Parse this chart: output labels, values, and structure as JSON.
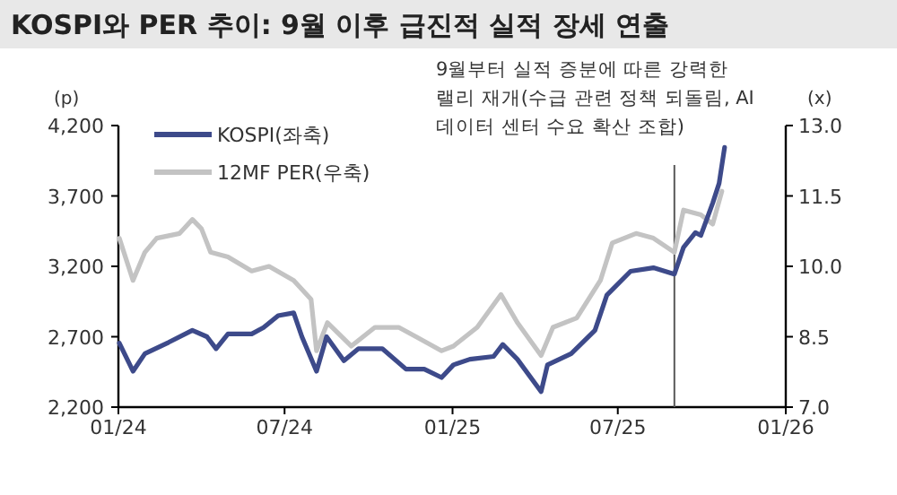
{
  "chart_data": {
    "type": "line",
    "title": "KOSPI와 PER 추이: 9월 이후 급진적 실적 장세 연출",
    "ylabel": "(p)",
    "y2label": "(x)",
    "annotations": [
      "9월부터 실적 증분에 따른 강력한\n랠리 재개(수급 관련 정책 되돌림, AI\n데이터 센터 수요 확산 조합)"
    ],
    "legend": "top left",
    "grid": false,
    "xlim": [
      "2024-01-01",
      "2026-01-01"
    ],
    "xticks": [
      {
        "value": "2024-01-01",
        "label": "01/24"
      },
      {
        "value": "2024-07-01",
        "label": "07/24"
      },
      {
        "value": "2025-01-01",
        "label": "01/25"
      },
      {
        "value": "2025-07-01",
        "label": "07/25"
      },
      {
        "value": "2026-01-01",
        "label": "01/26"
      }
    ],
    "ylim": [
      2200,
      4200
    ],
    "yticks": [
      {
        "value": 2200,
        "label": "2,200"
      },
      {
        "value": 2700,
        "label": "2,700"
      },
      {
        "value": 3200,
        "label": "3,200"
      },
      {
        "value": 3700,
        "label": "3,700"
      },
      {
        "value": 4200,
        "label": "4,200"
      }
    ],
    "y2lim": [
      7.0,
      13.0
    ],
    "y2ticks": [
      {
        "value": 7.0,
        "label": "7.0"
      },
      {
        "value": 8.5,
        "label": "8.5"
      },
      {
        "value": 10.0,
        "label": "10.0"
      },
      {
        "value": 11.5,
        "label": "11.5"
      },
      {
        "value": 13.0,
        "label": "13.0"
      }
    ],
    "ref_lines": [
      {
        "axis": "x",
        "value": "2025-09-01",
        "color": "#595959"
      }
    ],
    "series": [
      {
        "name": "KOSPI(좌축)",
        "color": "#3d4a8a",
        "x": [
          "2024-01-02",
          "2024-01-17",
          "2024-01-30",
          "2024-02-25",
          "2024-03-22",
          "2024-04-07",
          "2024-04-17",
          "2024-04-30",
          "2024-05-26",
          "2024-06-08",
          "2024-06-24",
          "2024-07-11",
          "2024-07-20",
          "2024-08-05",
          "2024-08-16",
          "2024-09-04",
          "2024-09-20",
          "2024-10-16",
          "2024-11-11",
          "2024-12-01",
          "2024-12-20",
          "2025-01-02",
          "2025-01-20",
          "2025-02-15",
          "2025-02-25",
          "2025-03-13",
          "2025-04-08",
          "2025-04-15",
          "2025-05-11",
          "2025-06-06",
          "2025-06-19",
          "2025-07-15",
          "2025-08-09",
          "2025-09-01",
          "2025-09-11",
          "2025-09-24",
          "2025-09-30",
          "2025-10-13",
          "2025-10-20",
          "2025-10-26"
        ],
        "values": [
          2655,
          2455,
          2580,
          2660,
          2745,
          2700,
          2615,
          2720,
          2720,
          2765,
          2850,
          2870,
          2700,
          2455,
          2700,
          2530,
          2615,
          2615,
          2470,
          2470,
          2410,
          2500,
          2540,
          2560,
          2645,
          2540,
          2310,
          2500,
          2580,
          2745,
          2995,
          3165,
          3190,
          3145,
          3335,
          3440,
          3420,
          3650,
          3790,
          4045
        ]
      },
      {
        "name": "12MF PER(우축)",
        "color": "#c3c3c3",
        "axis": "y2",
        "x": [
          "2024-01-02",
          "2024-01-17",
          "2024-01-30",
          "2024-02-12",
          "2024-03-08",
          "2024-03-22",
          "2024-04-01",
          "2024-04-11",
          "2024-04-30",
          "2024-05-26",
          "2024-06-14",
          "2024-07-11",
          "2024-07-30",
          "2024-08-05",
          "2024-08-17",
          "2024-09-12",
          "2024-10-08",
          "2024-11-03",
          "2024-11-22",
          "2024-12-20",
          "2025-01-02",
          "2025-01-28",
          "2025-02-23",
          "2025-03-13",
          "2025-04-08",
          "2025-04-21",
          "2025-05-17",
          "2025-06-12",
          "2025-06-25",
          "2025-07-21",
          "2025-08-09",
          "2025-09-01",
          "2025-09-11",
          "2025-09-30",
          "2025-10-13",
          "2025-10-23"
        ],
        "values": [
          10.6,
          9.7,
          10.3,
          10.6,
          10.7,
          11.0,
          10.8,
          10.3,
          10.2,
          9.9,
          10.0,
          9.7,
          9.3,
          8.2,
          8.8,
          8.3,
          8.7,
          8.7,
          8.5,
          8.2,
          8.3,
          8.7,
          9.4,
          8.8,
          8.1,
          8.7,
          8.9,
          9.7,
          10.5,
          10.7,
          10.6,
          10.3,
          11.2,
          11.1,
          10.9,
          11.6
        ]
      }
    ]
  }
}
